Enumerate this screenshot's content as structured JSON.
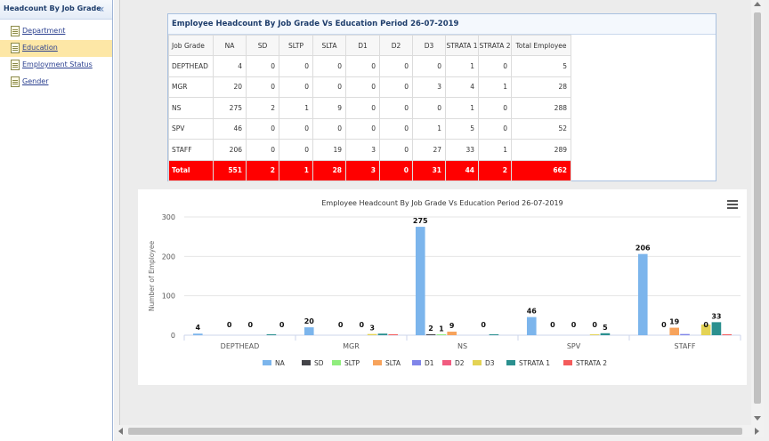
{
  "sidebar": {
    "title": "Headcount By Job Grade",
    "collapse_icon": "double-chevron-left-icon",
    "items": [
      {
        "label": "Department",
        "active": false,
        "icon": "document-icon"
      },
      {
        "label": "Education",
        "active": true,
        "icon": "document-icon"
      },
      {
        "label": "Employment Status",
        "active": false,
        "icon": "document-icon"
      },
      {
        "label": "Gender",
        "active": false,
        "icon": "document-icon"
      }
    ]
  },
  "table": {
    "title": "Employee Headcount By Job Grade Vs Education Period 26-07-2019",
    "headers": [
      "Job Grade",
      "NA",
      "SD",
      "SLTP",
      "SLTA",
      "D1",
      "D2",
      "D3",
      "STRATA 1",
      "STRATA 2",
      "Total Employee"
    ],
    "rows": [
      [
        "DEPTHEAD",
        "4",
        "0",
        "0",
        "0",
        "0",
        "0",
        "0",
        "1",
        "0",
        "5"
      ],
      [
        "MGR",
        "20",
        "0",
        "0",
        "0",
        "0",
        "0",
        "3",
        "4",
        "1",
        "28"
      ],
      [
        "NS",
        "275",
        "2",
        "1",
        "9",
        "0",
        "0",
        "0",
        "1",
        "0",
        "288"
      ],
      [
        "SPV",
        "46",
        "0",
        "0",
        "0",
        "0",
        "0",
        "1",
        "5",
        "0",
        "52"
      ],
      [
        "STAFF",
        "206",
        "0",
        "0",
        "19",
        "3",
        "0",
        "27",
        "33",
        "1",
        "289"
      ]
    ],
    "total_row": [
      "Total",
      "551",
      "2",
      "1",
      "28",
      "3",
      "0",
      "31",
      "44",
      "2",
      "662"
    ],
    "total_color": "#ff0000"
  },
  "chart_data": {
    "type": "bar",
    "title": "Employee Headcount By Job Grade Vs Education Period 26-07-2019",
    "xlabel": "",
    "ylabel": "Number of Employee",
    "ylim": [
      0,
      300
    ],
    "yticks": [
      0,
      100,
      200,
      300
    ],
    "grid": true,
    "legend_position": "bottom",
    "categories": [
      "DEPTHEAD",
      "MGR",
      "NS",
      "SPV",
      "STAFF"
    ],
    "series": [
      {
        "name": "NA",
        "color": "#7cb5ec",
        "values": [
          4,
          20,
          275,
          46,
          206
        ]
      },
      {
        "name": "SD",
        "color": "#434348",
        "values": [
          0,
          0,
          2,
          0,
          0
        ]
      },
      {
        "name": "SLTP",
        "color": "#90ed7d",
        "values": [
          0,
          0,
          1,
          0,
          0
        ]
      },
      {
        "name": "SLTA",
        "color": "#f7a35c",
        "values": [
          0,
          0,
          9,
          0,
          19
        ]
      },
      {
        "name": "D1",
        "color": "#8085e9",
        "values": [
          0,
          0,
          0,
          0,
          3
        ]
      },
      {
        "name": "D2",
        "color": "#f15c80",
        "values": [
          0,
          0,
          0,
          0,
          0
        ]
      },
      {
        "name": "D3",
        "color": "#e4d354",
        "values": [
          0,
          3,
          0,
          1,
          27
        ]
      },
      {
        "name": "STRATA 1",
        "color": "#2b908f",
        "values": [
          1,
          4,
          1,
          5,
          33
        ]
      },
      {
        "name": "STRATA 2",
        "color": "#f45b5b",
        "values": [
          0,
          1,
          0,
          0,
          1
        ]
      }
    ],
    "data_labels": [
      [
        "4",
        "0",
        "0",
        "0"
      ],
      [
        "20",
        "0",
        "0",
        "3"
      ],
      [
        "275",
        "2",
        "9",
        "0",
        "1"
      ],
      [
        "46",
        "0",
        "0",
        "0",
        "5"
      ],
      [
        "206",
        "0",
        "19",
        "0",
        "33"
      ]
    ]
  },
  "chart_menu_icon": "hamburger-menu-icon"
}
